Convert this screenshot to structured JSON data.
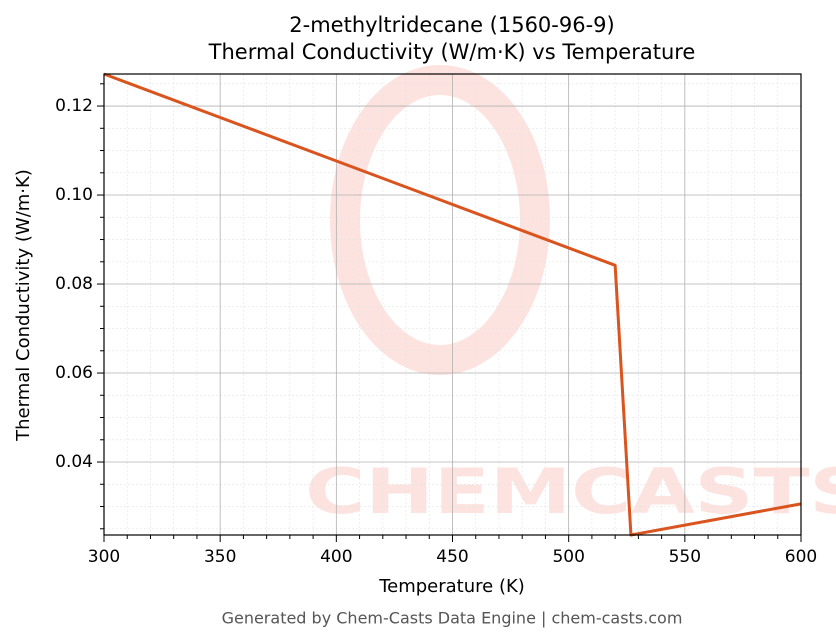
{
  "chart_data": {
    "type": "line",
    "title": "2-methyltridecane (1560-96-9)",
    "subtitle": "Thermal Conductivity (W/m·K) vs Temperature",
    "x_label": "Temperature (K)",
    "y_label": "Thermal Conductivity (W/m·K)",
    "footer": "Generated by Chem-Casts Data Engine | chem-casts.com",
    "watermark": "CHEMCASTS",
    "x": [
      300,
      520,
      526.8,
      600
    ],
    "series": [
      {
        "name": "Thermal Conductivity",
        "color": "#d9541e",
        "values": [
          0.1272,
          0.0842,
          0.0236,
          0.0306
        ]
      }
    ],
    "xlim": [
      300,
      600
    ],
    "ylim": [
      0.0236,
      0.1272
    ],
    "xticks": [
      300,
      350,
      400,
      450,
      500,
      550,
      600
    ],
    "yticks": [
      {
        "value": 0.04,
        "label": "0.04"
      },
      {
        "value": 0.06,
        "label": "0.06"
      },
      {
        "value": 0.08,
        "label": "0.08"
      },
      {
        "value": 0.1,
        "label": "0.10"
      },
      {
        "value": 0.12,
        "label": "0.12"
      }
    ],
    "xminor": [
      310,
      320,
      330,
      340,
      360,
      370,
      380,
      390,
      410,
      420,
      430,
      440,
      460,
      470,
      480,
      490,
      510,
      520,
      530,
      540,
      560,
      570,
      580,
      590
    ],
    "yminor": [
      0.025,
      0.03,
      0.035,
      0.045,
      0.05,
      0.055,
      0.065,
      0.07,
      0.075,
      0.085,
      0.09,
      0.095,
      0.105,
      0.11,
      0.115,
      0.125
    ],
    "grid": true
  }
}
